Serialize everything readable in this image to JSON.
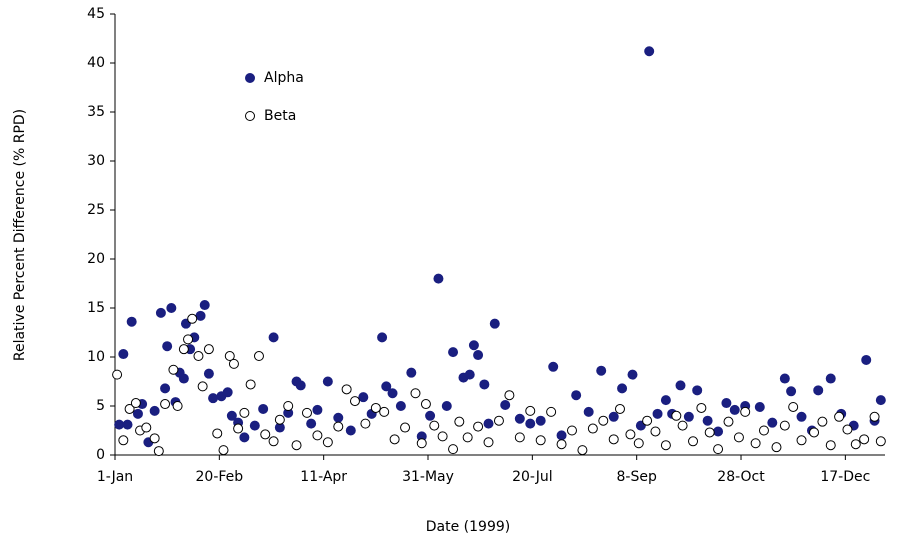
{
  "chart_data": {
    "type": "scatter",
    "xlabel": "Date (1999)",
    "ylabel": "Relative Percent Difference (% RPD)",
    "xlim": [
      1,
      370
    ],
    "ylim": [
      0,
      45
    ],
    "xticks": [
      {
        "value": 1,
        "label": "1-Jan"
      },
      {
        "value": 51,
        "label": "20-Feb"
      },
      {
        "value": 101,
        "label": "11-Apr"
      },
      {
        "value": 151,
        "label": "31-May"
      },
      {
        "value": 201,
        "label": "20-Jul"
      },
      {
        "value": 251,
        "label": "8-Sep"
      },
      {
        "value": 301,
        "label": "28-Oct"
      },
      {
        "value": 351,
        "label": "17-Dec"
      }
    ],
    "yticks": [
      0,
      5,
      10,
      15,
      20,
      25,
      30,
      35,
      40,
      45
    ],
    "grid": false,
    "legend": "upper-left",
    "series": [
      {
        "name": "Alpha",
        "color": "#1a1f80",
        "edgecolor": "#1a1f80",
        "x": [
          3,
          5,
          7,
          9,
          12,
          14,
          17,
          20,
          23,
          25,
          26,
          28,
          30,
          32,
          34,
          35,
          37,
          39,
          42,
          44,
          46,
          48,
          52,
          55,
          57,
          60,
          63,
          68,
          72,
          77,
          80,
          84,
          88,
          90,
          95,
          98,
          103,
          108,
          114,
          120,
          124,
          129,
          131,
          134,
          138,
          143,
          148,
          152,
          156,
          160,
          163,
          168,
          171,
          173,
          175,
          178,
          180,
          183,
          188,
          195,
          200,
          205,
          211,
          215,
          222,
          228,
          234,
          240,
          244,
          249,
          253,
          257,
          261,
          265,
          268,
          272,
          276,
          280,
          285,
          290,
          294,
          298,
          303,
          310,
          316,
          322,
          325,
          330,
          335,
          338,
          344,
          349,
          355,
          361,
          365,
          368
        ],
        "values": [
          3.1,
          10.3,
          3.1,
          13.6,
          4.2,
          5.2,
          1.3,
          4.5,
          14.5,
          6.8,
          11.1,
          15.0,
          5.4,
          8.4,
          7.8,
          13.4,
          10.8,
          12.0,
          14.2,
          15.3,
          8.3,
          5.8,
          6.0,
          6.4,
          4.0,
          3.3,
          1.8,
          3.0,
          4.7,
          12.0,
          2.8,
          4.3,
          7.5,
          7.1,
          3.2,
          4.6,
          7.5,
          3.8,
          2.5,
          5.9,
          4.2,
          12.0,
          7.0,
          6.3,
          5.0,
          8.4,
          1.9,
          4.0,
          18.0,
          5.0,
          10.5,
          7.9,
          8.2,
          11.2,
          10.2,
          7.2,
          3.2,
          13.4,
          5.1,
          3.7,
          3.2,
          3.5,
          9.0,
          2.0,
          6.1,
          4.4,
          8.6,
          3.9,
          6.8,
          8.2,
          3.0,
          41.2,
          4.2,
          5.6,
          4.2,
          7.1,
          3.9,
          6.6,
          3.5,
          2.4,
          5.3,
          4.6,
          5.0,
          4.9,
          3.3,
          7.8,
          6.5,
          3.9,
          2.5,
          6.6,
          7.8,
          4.2,
          3.0,
          9.7,
          3.5,
          5.6
        ]
      },
      {
        "name": "Beta",
        "color": "#ffffff",
        "edgecolor": "#000000",
        "x": [
          2,
          5,
          8,
          11,
          13,
          16,
          20,
          22,
          25,
          29,
          31,
          34,
          36,
          38,
          41,
          43,
          46,
          50,
          53,
          56,
          58,
          60,
          63,
          66,
          70,
          73,
          77,
          80,
          84,
          88,
          93,
          98,
          103,
          108,
          112,
          116,
          121,
          126,
          130,
          135,
          140,
          145,
          148,
          150,
          154,
          158,
          163,
          166,
          170,
          175,
          180,
          185,
          190,
          195,
          200,
          205,
          210,
          215,
          220,
          225,
          230,
          235,
          240,
          243,
          248,
          252,
          256,
          260,
          265,
          270,
          273,
          278,
          282,
          286,
          290,
          295,
          300,
          303,
          308,
          312,
          318,
          322,
          326,
          330,
          336,
          340,
          344,
          348,
          352,
          356,
          360,
          365,
          368
        ],
        "values": [
          8.2,
          1.5,
          4.7,
          5.3,
          2.5,
          2.8,
          1.7,
          0.4,
          5.2,
          8.7,
          5.0,
          10.8,
          11.8,
          13.9,
          10.1,
          7.0,
          10.8,
          2.2,
          0.5,
          10.1,
          9.3,
          2.7,
          4.3,
          7.2,
          10.1,
          2.1,
          1.4,
          3.6,
          5.0,
          1.0,
          4.3,
          2.0,
          1.3,
          2.9,
          6.7,
          5.5,
          3.2,
          4.8,
          4.4,
          1.6,
          2.8,
          6.3,
          1.2,
          5.2,
          3.0,
          1.9,
          0.6,
          3.4,
          1.8,
          2.9,
          1.3,
          3.5,
          6.1,
          1.8,
          4.5,
          1.5,
          4.4,
          1.1,
          2.5,
          0.5,
          2.7,
          3.5,
          1.6,
          4.7,
          2.1,
          1.2,
          3.5,
          2.4,
          1.0,
          4.0,
          3.0,
          1.4,
          4.8,
          2.3,
          0.6,
          3.4,
          1.8,
          4.4,
          1.2,
          2.5,
          0.8,
          3.0,
          4.9,
          1.5,
          2.3,
          3.4,
          1.0,
          3.9,
          2.6,
          1.1,
          1.6,
          3.9,
          1.4
        ]
      }
    ]
  }
}
